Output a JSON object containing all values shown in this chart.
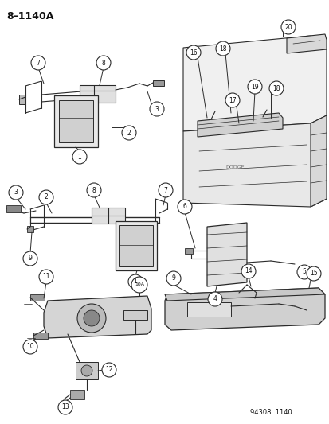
{
  "title": "8–1140A",
  "footer": "94308  1140",
  "bg_color": "#f5f5f5",
  "line_color": "#2a2a2a",
  "text_color": "#111111",
  "fig_width": 4.14,
  "fig_height": 5.33,
  "dpi": 100
}
